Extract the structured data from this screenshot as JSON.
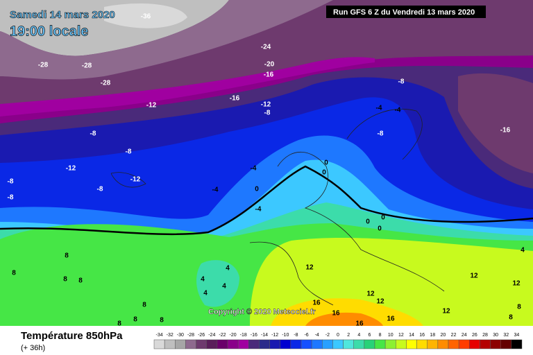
{
  "header": {
    "date": "Samedi 14 mars 2020",
    "time": "19:00 locale",
    "run": "Run GFS 6 Z du Vendredi 13 mars 2020"
  },
  "footer": {
    "title": "Température 850hPa",
    "lead": "(+ 36h)",
    "copyright": "Copyright © 2020 Meteociel.fr"
  },
  "legend": {
    "values": [
      -34,
      -32,
      -30,
      -28,
      -26,
      -24,
      -22,
      -20,
      -18,
      -16,
      -14,
      -12,
      -10,
      -8,
      -6,
      -4,
      -2,
      0,
      2,
      4,
      6,
      8,
      10,
      12,
      14,
      16,
      18,
      20,
      22,
      24,
      26,
      28,
      30,
      32,
      34
    ],
    "colors": [
      "#d9d9d9",
      "#bfbfbf",
      "#a6a6a6",
      "#8e6a8e",
      "#6e3a6e",
      "#5a1e5a",
      "#6a006a",
      "#8a008a",
      "#a000a0",
      "#4a2a7a",
      "#2a2a8a",
      "#1a1ab0",
      "#0000d0",
      "#0a28e6",
      "#1450ff",
      "#1e78ff",
      "#28a0ff",
      "#3cc8ff",
      "#50e6dc",
      "#3cdcaa",
      "#28d278",
      "#46e646",
      "#8cf032",
      "#c8fa1e",
      "#ffff00",
      "#ffdc00",
      "#ffb400",
      "#ff8c00",
      "#ff6400",
      "#ff3c00",
      "#e60000",
      "#b40000",
      "#8c0000",
      "#640000",
      "#000000"
    ]
  },
  "map": {
    "labels": [
      -36,
      -28,
      -28,
      -28,
      -24,
      -20,
      -16,
      -16,
      -12,
      -12,
      -8,
      -8,
      -8,
      -12,
      -12,
      -8,
      -8,
      -8,
      -4,
      -4,
      0,
      0,
      0,
      -4,
      0,
      0,
      0,
      -8,
      -4,
      -4,
      -8,
      -16,
      8,
      8,
      8,
      8,
      4,
      4,
      4,
      4,
      12,
      12,
      12,
      12,
      12,
      16,
      16,
      16,
      16,
      8,
      8,
      8,
      8,
      4,
      8,
      12,
      8
    ]
  }
}
